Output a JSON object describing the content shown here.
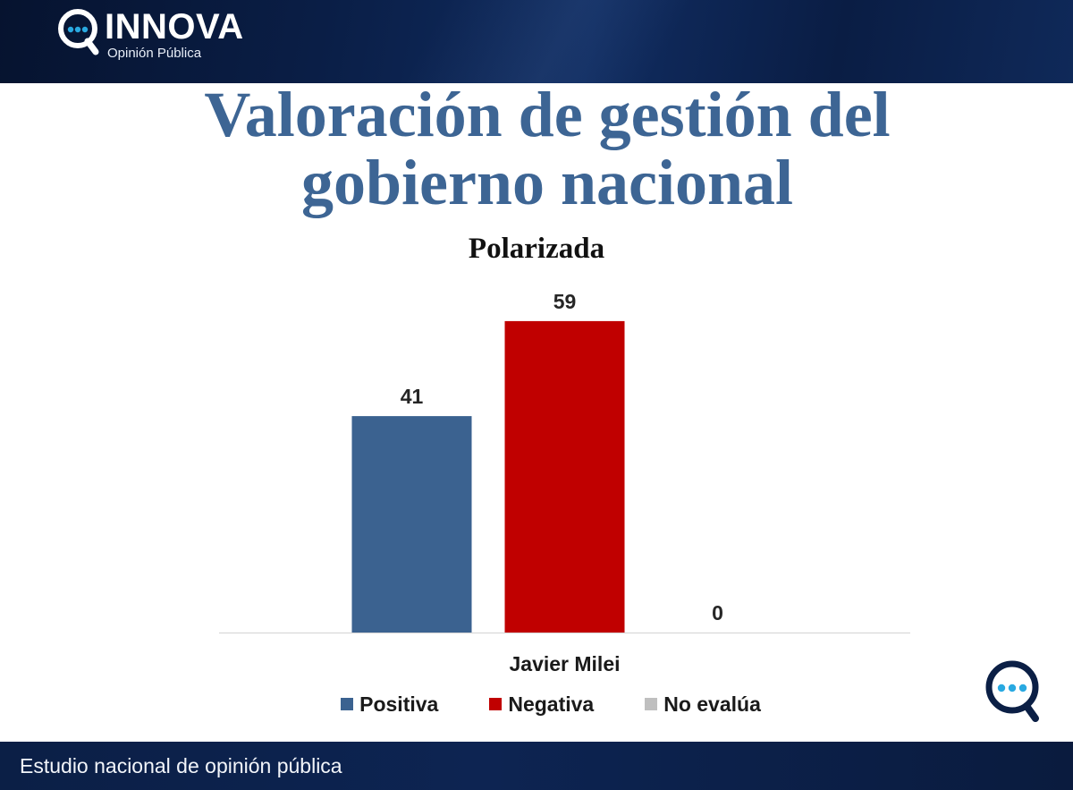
{
  "header": {
    "logo_icon": "search-chat-icon",
    "brand_name": "INNOVA",
    "brand_tagline": "Opinión Pública"
  },
  "title": {
    "line1": "Valoración de gestión del",
    "line2": "gobierno nacional"
  },
  "chart_data": {
    "type": "bar",
    "title": "Polarizada",
    "categories": [
      "Javier Milei"
    ],
    "series": [
      {
        "name": "Positiva",
        "values": [
          41
        ],
        "color": "#3b6290"
      },
      {
        "name": "Negativa",
        "values": [
          59
        ],
        "color": "#c00000"
      },
      {
        "name": "No evalúa",
        "values": [
          0
        ],
        "color": "#bfbfbf"
      }
    ],
    "data_labels": true,
    "ylim": [
      0,
      70
    ],
    "y_axis_visible": false,
    "grid": false,
    "legend": "bottom"
  },
  "corner_logo": {
    "icon": "search-chat-icon"
  },
  "footer": {
    "text": "Estudio nacional de opinión pública"
  },
  "colors": {
    "title": "#3d6594",
    "brand_navy": "#0b1f45",
    "accent_dots": "#29a9e1"
  }
}
